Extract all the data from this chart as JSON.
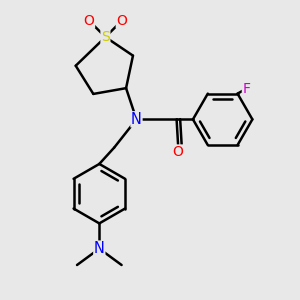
{
  "bg_color": "#e8e8e8",
  "atom_colors": {
    "S": "#cccc00",
    "O": "#ff0000",
    "N": "#0000ff",
    "F": "#cc00cc",
    "C": "#000000"
  },
  "bond_color": "#000000",
  "bond_width": 1.8,
  "figsize": [
    3.0,
    3.0
  ],
  "dpi": 100
}
